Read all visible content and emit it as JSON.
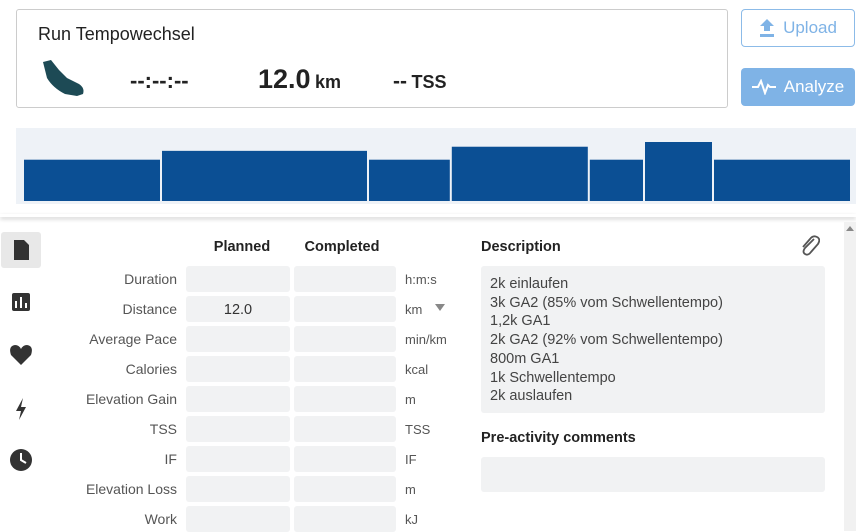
{
  "workout": {
    "title": "Run Tempowechsel",
    "duration": "--:--:--",
    "distance": "12.0",
    "distance_unit": "km",
    "tss": "--",
    "tss_unit": "TSS"
  },
  "buttons": {
    "upload": "Upload",
    "analyze": "Analyze"
  },
  "workout_profile": {
    "distances_km": [
      2,
      3,
      1.2,
      2,
      0.8,
      1,
      2
    ],
    "intensity_pct": [
      70,
      85,
      70,
      92,
      70,
      100,
      70
    ],
    "color": "#0b4f94"
  },
  "table": {
    "headers": [
      "Planned",
      "Completed"
    ],
    "rows": [
      {
        "label": "Duration",
        "unit": "h:m:s"
      },
      {
        "label": "Distance",
        "planned": "12.0",
        "unit": "km"
      },
      {
        "label": "Average Pace",
        "unit": "min/km"
      },
      {
        "label": "Calories",
        "unit": "kcal"
      },
      {
        "label": "Elevation Gain",
        "unit": "m"
      },
      {
        "label": "TSS",
        "unit": "TSS"
      },
      {
        "label": "IF",
        "unit": "IF"
      },
      {
        "label": "Elevation Loss",
        "unit": "m"
      },
      {
        "label": "Work",
        "unit": "kJ"
      }
    ]
  },
  "description": {
    "title": "Description",
    "lines": [
      "2k einlaufen",
      "3k GA2 (85% vom Schwellentempo)",
      "1,2k GA1",
      "2k GA2 (92% vom Schwellentempo)",
      "800m GA1",
      "1k Schwellentempo",
      "2k auslaufen"
    ]
  },
  "comments": {
    "title": "Pre-activity comments"
  }
}
